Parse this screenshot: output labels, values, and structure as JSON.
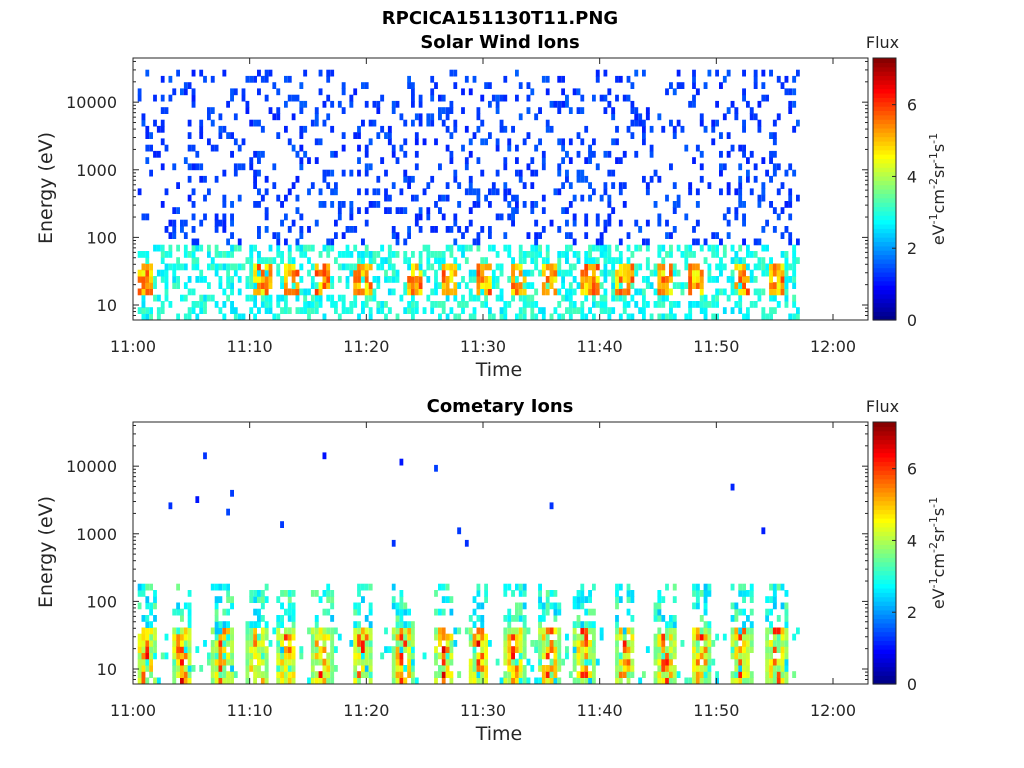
{
  "figure_title": "RPCICA151130T11.PNG",
  "chart_data": [
    {
      "type": "heatmap",
      "title": "Solar Wind Ions",
      "xlabel": "Time",
      "ylabel": "Energy (eV)",
      "x_ticks": [
        "11:00",
        "11:10",
        "11:20",
        "11:30",
        "11:40",
        "11:50",
        "12:00"
      ],
      "x_range_minutes": [
        0,
        63
      ],
      "data_end_minutes": 57,
      "y_scale": "log",
      "y_ticks": [
        "10",
        "100",
        "1000",
        "10000"
      ],
      "y_range_eV": [
        6,
        45000
      ],
      "colorbar": {
        "title": "Flux",
        "label": "eV-1cm-2sr-1s-1",
        "ticks": [
          "0",
          "2",
          "4",
          "6"
        ],
        "range": [
          0,
          7.3
        ]
      },
      "colormap": "jet",
      "description_fields": {
        "high_energy_flux_level": 1.2,
        "low_energy_flux_level": 3.0,
        "burst_times_minutes": [
          1,
          11,
          13.5,
          16,
          19.5,
          24,
          27,
          30,
          33,
          35.5,
          39,
          42,
          45.5,
          48,
          52,
          55
        ]
      }
    },
    {
      "type": "heatmap",
      "title": "Cometary Ions",
      "xlabel": "Time",
      "ylabel": "Energy (eV)",
      "x_ticks": [
        "11:00",
        "11:10",
        "11:20",
        "11:30",
        "11:40",
        "11:50",
        "12:00"
      ],
      "x_range_minutes": [
        0,
        63
      ],
      "data_end_minutes": 57,
      "y_scale": "log",
      "y_ticks": [
        "10",
        "100",
        "1000",
        "10000"
      ],
      "y_range_eV": [
        6,
        45000
      ],
      "colorbar": {
        "title": "Flux",
        "label": "eV-1cm-2sr-1s-1",
        "ticks": [
          "0",
          "2",
          "4",
          "6"
        ],
        "range": [
          0,
          7.3
        ]
      },
      "colormap": "jet",
      "description_fields": {
        "burst_times_minutes": [
          1,
          4,
          7.5,
          10.5,
          13,
          16,
          19.5,
          23,
          26.5,
          29.5,
          32.5,
          35.5,
          38.5,
          42,
          45.5,
          48.5,
          52,
          55
        ],
        "peak_flux": 6.8
      }
    }
  ]
}
